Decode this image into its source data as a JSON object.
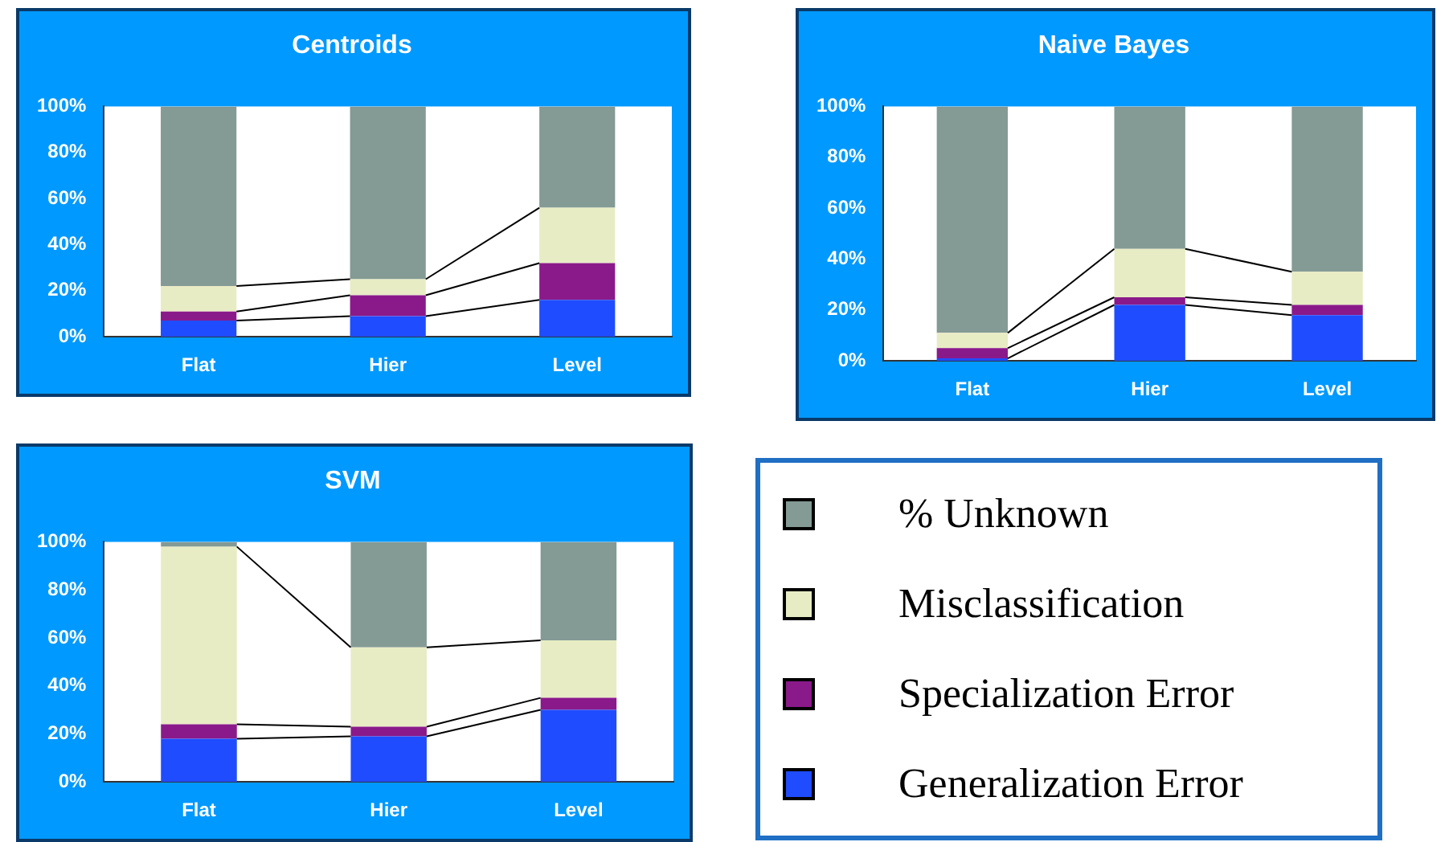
{
  "chart_data": [
    {
      "type": "bar",
      "title": "Centroids",
      "categories": [
        "Flat",
        "Hier",
        "Level"
      ],
      "stacked": true,
      "ylim": [
        0,
        100
      ],
      "yticks": [
        {
          "value": 0,
          "label": "0%"
        },
        {
          "value": 20,
          "label": "20%"
        },
        {
          "value": 40,
          "label": "40%"
        },
        {
          "value": 60,
          "label": "60%"
        },
        {
          "value": 80,
          "label": "80%"
        },
        {
          "value": 100,
          "label": "100%"
        }
      ],
      "grid": false,
      "series": [
        {
          "color": "#1f4cff",
          "values": [
            7,
            9,
            16
          ]
        },
        {
          "color": "#8a1a8a",
          "values": [
            4,
            9,
            16
          ]
        },
        {
          "color": "#e8ecc4",
          "values": [
            11,
            7,
            24
          ]
        },
        {
          "color": "#849a94",
          "values": [
            78,
            75,
            44
          ]
        }
      ]
    },
    {
      "type": "bar",
      "title": "Naive Bayes",
      "categories": [
        "Flat",
        "Hier",
        "Level"
      ],
      "stacked": true,
      "ylim": [
        0,
        100
      ],
      "yticks": [
        {
          "value": 0,
          "label": "0%"
        },
        {
          "value": 20,
          "label": "20%"
        },
        {
          "value": 40,
          "label": "40%"
        },
        {
          "value": 60,
          "label": "60%"
        },
        {
          "value": 80,
          "label": "80%"
        },
        {
          "value": 100,
          "label": "100%"
        }
      ],
      "grid": false,
      "series": [
        {
          "color": "#1f4cff",
          "values": [
            1,
            22,
            18
          ]
        },
        {
          "color": "#8a1a8a",
          "values": [
            4,
            3,
            4
          ]
        },
        {
          "color": "#e8ecc4",
          "values": [
            6,
            19,
            13
          ]
        },
        {
          "color": "#849a94",
          "values": [
            89,
            56,
            65
          ]
        }
      ]
    },
    {
      "type": "bar",
      "title": "SVM",
      "categories": [
        "Flat",
        "Hier",
        "Level"
      ],
      "stacked": true,
      "ylim": [
        0,
        100
      ],
      "yticks": [
        {
          "value": 0,
          "label": "0%"
        },
        {
          "value": 20,
          "label": "20%"
        },
        {
          "value": 40,
          "label": "40%"
        },
        {
          "value": 60,
          "label": "60%"
        },
        {
          "value": 80,
          "label": "80%"
        },
        {
          "value": 100,
          "label": "100%"
        }
      ],
      "grid": false,
      "legend": "right",
      "series": [
        {
          "name": "Generalization Error",
          "color": "#1f4cff",
          "values": [
            18,
            19,
            30
          ]
        },
        {
          "name": "Specialization Error",
          "color": "#8a1a8a",
          "values": [
            6,
            4,
            5
          ]
        },
        {
          "name": "Misclassification",
          "color": "#e8ecc4",
          "values": [
            74,
            33,
            24
          ]
        },
        {
          "name": "% Unknown",
          "color": "#849a94",
          "values": [
            2,
            44,
            41
          ]
        }
      ]
    }
  ]
}
